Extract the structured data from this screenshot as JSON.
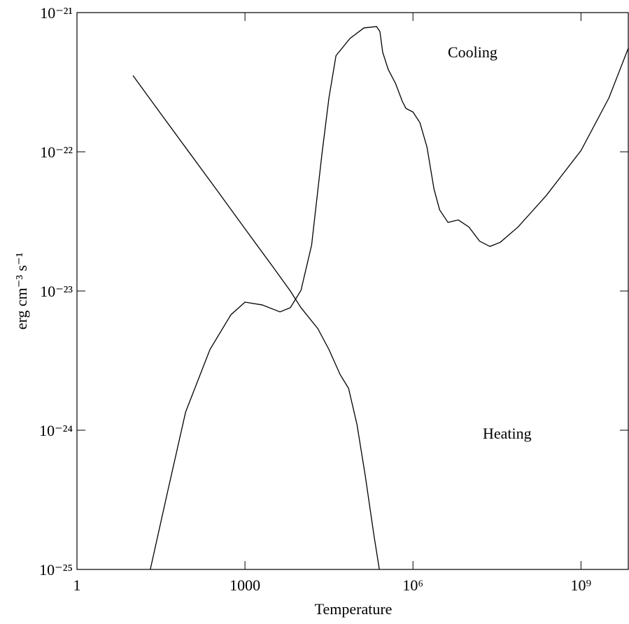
{
  "chart_data": {
    "type": "line",
    "xlabel": "Temperature",
    "ylabel": "erg cm⁻³ s⁻¹",
    "xscale": "log",
    "yscale": "log",
    "xlim": [
      1,
      7000000000
    ],
    "ylim": [
      1e-25,
      1e-21
    ],
    "xticks": [
      1,
      1000,
      {
        "value": 1000000,
        "label": "10⁶"
      },
      {
        "value": 1000000000,
        "label": "10⁹"
      }
    ],
    "yticks": [
      {
        "value": 1e-25,
        "label": "10⁻²⁵"
      },
      {
        "value": 1e-24,
        "label": "10⁻²⁴"
      },
      {
        "value": 1e-23,
        "label": "10⁻²³"
      },
      {
        "value": 1e-22,
        "label": "10⁻²²"
      },
      {
        "value": 1e-21,
        "label": "10⁻²¹"
      }
    ],
    "series": [
      {
        "name": "Cooling",
        "color": "#000000",
        "x": [
          20.4,
          42.2,
          87.1,
          237,
          562,
          1000,
          2040,
          4220,
          6460,
          10000,
          15500,
          23700,
          31600,
          42200,
          75000,
          133000,
          224000,
          257000,
          288000,
          363000,
          490000,
          646000,
          750000,
          1000000,
          1330000,
          1780000,
          2370000,
          2990000,
          4220000,
          6460000,
          10000000,
          15500000,
          23700000,
          36300000,
          75000000,
          237000000,
          1000000000,
          3160000000,
          7080000000
        ],
        "values": [
          1e-25,
          3.72e-25,
          1.35e-24,
          3.8e-24,
          6.76e-24,
          8.32e-24,
          7.94e-24,
          7.08e-24,
          7.59e-24,
          1.01e-23,
          2.14e-23,
          9.66e-23,
          2.44e-22,
          4.9e-22,
          6.52e-22,
          7.76e-22,
          7.94e-22,
          7.31e-22,
          5.18e-22,
          3.89e-22,
          3.09e-22,
          2.3e-22,
          2.05e-22,
          1.93e-22,
          1.62e-22,
          1.08e-22,
          5.42e-23,
          3.83e-23,
          3.11e-23,
          3.24e-23,
          2.88e-23,
          2.28e-23,
          2.09e-23,
          2.24e-23,
          2.88e-23,
          4.82e-23,
          1.02e-22,
          2.44e-22,
          5.62e-22
        ]
      },
      {
        "name": "Heating",
        "color": "#000000",
        "x": [
          10,
          31.6,
          100,
          316,
          1000,
          3160,
          6460,
          10000,
          20000,
          31600,
          50100,
          70800,
          100000,
          141000,
          200000,
          251000
        ],
        "values": [
          3.53e-22,
          1.87e-22,
          9.95e-23,
          5.3e-23,
          2.8e-23,
          1.49e-23,
          1e-23,
          7.59e-24,
          5.37e-24,
          3.8e-24,
          2.51e-24,
          2e-24,
          1.1e-24,
          4.68e-25,
          1.78e-25,
          1e-25
        ]
      }
    ]
  }
}
